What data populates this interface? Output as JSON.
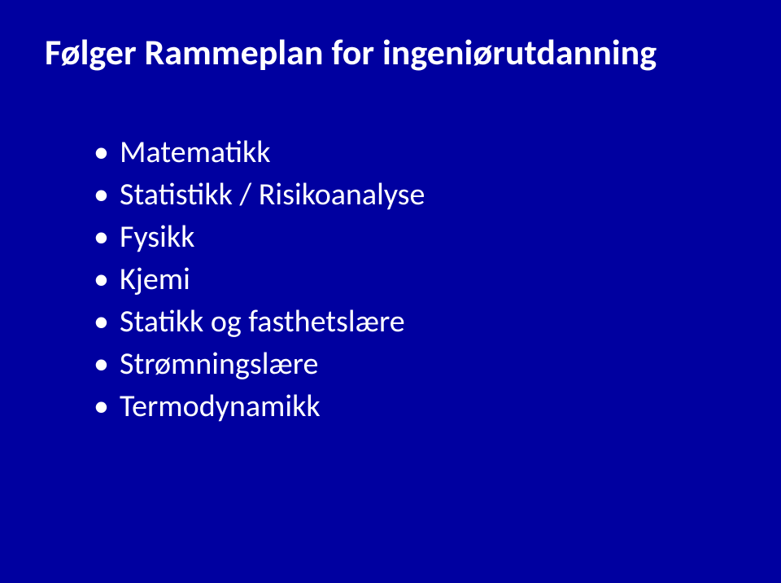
{
  "slide": {
    "background_color": "#0000a0",
    "text_color": "#ffffff",
    "title": "Følger Rammeplan for ingeniørutdanning",
    "title_fontsize": 44,
    "title_fontweight": 700,
    "bullet_fontsize": 38,
    "bullets": [
      "Matematikk",
      "Statistikk / Risikoanalyse",
      "Fysikk",
      "Kjemi",
      "Statikk og fasthetslære",
      "Strømningslære",
      "Termodynamikk"
    ]
  }
}
